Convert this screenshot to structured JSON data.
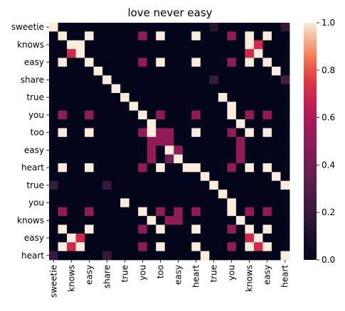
{
  "chart_data": {
    "type": "heatmap",
    "title": "love never easy",
    "xlabel": "",
    "ylabel": "",
    "row_labels": [
      "sweetie",
      "",
      "knows",
      "",
      "easy",
      "",
      "share",
      "",
      "true",
      "",
      "you",
      "",
      "too",
      "",
      "easy",
      "",
      "heart",
      "",
      "true",
      "",
      "you",
      "",
      "knows",
      "",
      "easy",
      "",
      "heart"
    ],
    "col_labels": [
      "sweetie",
      "",
      "knows",
      "",
      "easy",
      "",
      "share",
      "",
      "true",
      "",
      "you",
      "",
      "too",
      "",
      "easy",
      "",
      "heart",
      "",
      "true",
      "",
      "you",
      "",
      "knows",
      "",
      "easy",
      "",
      "heart"
    ],
    "colorbar": {
      "min": 0.0,
      "max": 1.0,
      "ticks": [
        "0.0",
        "0.2",
        "0.4",
        "0.6",
        "0.8",
        "1.0"
      ]
    },
    "colors": {
      "low": "#03051a",
      "high": "#faebdd"
    },
    "values": [
      [
        1.0,
        0,
        0,
        0,
        0,
        0,
        0,
        0,
        0,
        0,
        0,
        0,
        0,
        0,
        0,
        0,
        0,
        0,
        0.15,
        0,
        0,
        0,
        0,
        0,
        0,
        0,
        0.2
      ],
      [
        0,
        1.0,
        0,
        0,
        1.0,
        0,
        0,
        0,
        0,
        0,
        0.5,
        0,
        1.0,
        0,
        0,
        0,
        1.0,
        0,
        0,
        0,
        0.5,
        0,
        1.0,
        0,
        1.0,
        0,
        0
      ],
      [
        0,
        0,
        1.0,
        1.0,
        0,
        0,
        0,
        0,
        0,
        0,
        0,
        0,
        0,
        0,
        0,
        0,
        0,
        0,
        0,
        0,
        0,
        0,
        1.0,
        0.7,
        0,
        0,
        0
      ],
      [
        0,
        0,
        0.7,
        1.0,
        0,
        0,
        0,
        0,
        0,
        0,
        0,
        0,
        0,
        0,
        0,
        0,
        0,
        0,
        0,
        0,
        0,
        0,
        0.7,
        1.0,
        0,
        0,
        0
      ],
      [
        0,
        1.0,
        0,
        0,
        1.0,
        0,
        0,
        0,
        0,
        0,
        0.5,
        0,
        1.0,
        0,
        0,
        0,
        1.0,
        0,
        0,
        0,
        0.5,
        0,
        1.0,
        0,
        1.0,
        0,
        0
      ],
      [
        0,
        0,
        0,
        0,
        0,
        1.0,
        0,
        0,
        0,
        0,
        0,
        0,
        0,
        0,
        0,
        0,
        0,
        0,
        0,
        0,
        0,
        0,
        0,
        0,
        0,
        1.0,
        0
      ],
      [
        0,
        0,
        0,
        0,
        0,
        0,
        1.0,
        0,
        0,
        0,
        0,
        0,
        0,
        0,
        0,
        0,
        0,
        0,
        0.2,
        0,
        0,
        0,
        0,
        0,
        0,
        0,
        0.25
      ],
      [
        0,
        0,
        0,
        0,
        0,
        0,
        0,
        1.0,
        0,
        0,
        0,
        0,
        0,
        0,
        0,
        0,
        0,
        0,
        0,
        0,
        0,
        0,
        0,
        0,
        0,
        0,
        0
      ],
      [
        0,
        0,
        0,
        0,
        0,
        0,
        0,
        0,
        1.0,
        0,
        0,
        0,
        0,
        0,
        0,
        0,
        0,
        0,
        0,
        1.0,
        0,
        0,
        0,
        0,
        0,
        0,
        0
      ],
      [
        0,
        0,
        0,
        0,
        0,
        0,
        0,
        0,
        0,
        1.0,
        0,
        0,
        0,
        0,
        0,
        0,
        0,
        0,
        0,
        0,
        1.0,
        0,
        0,
        0,
        0,
        0,
        0
      ],
      [
        0,
        0.5,
        0,
        0,
        0.5,
        0,
        0,
        0,
        0,
        0,
        1.0,
        0,
        0.5,
        0,
        0,
        0,
        0.5,
        0,
        0,
        0,
        1.0,
        0,
        0.5,
        0,
        0.5,
        0,
        0
      ],
      [
        0,
        0,
        0,
        0,
        0,
        0,
        0,
        0,
        0,
        0,
        0,
        1.0,
        0,
        0,
        0,
        0,
        0,
        0,
        0,
        0,
        0,
        1.0,
        0,
        0,
        0,
        0,
        0
      ],
      [
        0,
        1.0,
        0,
        0,
        1.0,
        0,
        0,
        0,
        0,
        0,
        0.5,
        1.0,
        0.5,
        0.5,
        0,
        0,
        1.0,
        0,
        0,
        0,
        0.5,
        0,
        1.0,
        0,
        1.0,
        0,
        0
      ],
      [
        0,
        0,
        0,
        0,
        0,
        0,
        0,
        0,
        0,
        0,
        0,
        0.5,
        0.5,
        0.5,
        0,
        0,
        0,
        0,
        0,
        0,
        0,
        0.5,
        0,
        0,
        0,
        0,
        0
      ],
      [
        0,
        0,
        0,
        0,
        0,
        0,
        0,
        0,
        0,
        0,
        0,
        0.5,
        0,
        1.0,
        0.5,
        0,
        0,
        0,
        0,
        0,
        0,
        0.5,
        0,
        0,
        0,
        0,
        0
      ],
      [
        0,
        0,
        0,
        0,
        0,
        0,
        0,
        0,
        0,
        0,
        0,
        0.5,
        0,
        0.4,
        1.0,
        0,
        0,
        0,
        0,
        0,
        0,
        0.5,
        0,
        0,
        0,
        0,
        0
      ],
      [
        0,
        1.0,
        0,
        0,
        1.0,
        0,
        0,
        0,
        0,
        0,
        0.5,
        0,
        1.0,
        0,
        0,
        1.0,
        1.0,
        0,
        0,
        0,
        0.5,
        0,
        1.0,
        0,
        1.0,
        0,
        0
      ],
      [
        0,
        0,
        0,
        0,
        0,
        0,
        0,
        0,
        0,
        0,
        0,
        0,
        0,
        0,
        0,
        0,
        0,
        1.0,
        0,
        0,
        0,
        0,
        0,
        0,
        0,
        1.0,
        0
      ],
      [
        0.2,
        0,
        0,
        0,
        0,
        0,
        0.2,
        0,
        0,
        0,
        0,
        0,
        0,
        0,
        0,
        0,
        0,
        0,
        1.0,
        0,
        0,
        0,
        0,
        0,
        0,
        0,
        1.0
      ],
      [
        0,
        0,
        0,
        0,
        0,
        0,
        0,
        0,
        0,
        0,
        0,
        0,
        0,
        0,
        0,
        0,
        0,
        0,
        0,
        1.0,
        0,
        0,
        0,
        0,
        0,
        0,
        0
      ],
      [
        0,
        0,
        0,
        0,
        0,
        0,
        0,
        0,
        1.0,
        0,
        0,
        0,
        0,
        0,
        0,
        0,
        0,
        0,
        0,
        0,
        1.0,
        0,
        0,
        0,
        0,
        0,
        0
      ],
      [
        0,
        0.5,
        0,
        0,
        0.5,
        0,
        0,
        0,
        0,
        0,
        1.0,
        0,
        0.5,
        0,
        0.5,
        0,
        0.5,
        0,
        0,
        0,
        1.0,
        0,
        0.5,
        0,
        0.5,
        0,
        0
      ],
      [
        0,
        0,
        0,
        0,
        0,
        0,
        0,
        0,
        0,
        0,
        0,
        1.0,
        0,
        0.5,
        0.5,
        0,
        0,
        0,
        0,
        0,
        0,
        1.0,
        0,
        0,
        0,
        0,
        0
      ],
      [
        0,
        1.0,
        0,
        0,
        1.0,
        0,
        0,
        0,
        0,
        0,
        0.5,
        0,
        1.0,
        0,
        0,
        0,
        1.0,
        0,
        0,
        0,
        0.5,
        0,
        1.0,
        0,
        1.0,
        0,
        0
      ],
      [
        0,
        0,
        1.0,
        0.7,
        0,
        0,
        0,
        0,
        0,
        0,
        0,
        0,
        0,
        0,
        0,
        0,
        0,
        0,
        0,
        0,
        0,
        0,
        0.7,
        1.0,
        0,
        0,
        0
      ],
      [
        0,
        1.0,
        0.7,
        1.0,
        0,
        0,
        0,
        0,
        0,
        0,
        0.5,
        0,
        1.0,
        0,
        0,
        0,
        1.0,
        0,
        0,
        0,
        0.5,
        0,
        1.0,
        0.7,
        1.0,
        0,
        0
      ],
      [
        0.2,
        0,
        0,
        0,
        0,
        0,
        0.2,
        0,
        0,
        0,
        0,
        0,
        0,
        0,
        0,
        0,
        0,
        1.0,
        0,
        0,
        0,
        0,
        0,
        0,
        0,
        0,
        1.0
      ]
    ]
  }
}
